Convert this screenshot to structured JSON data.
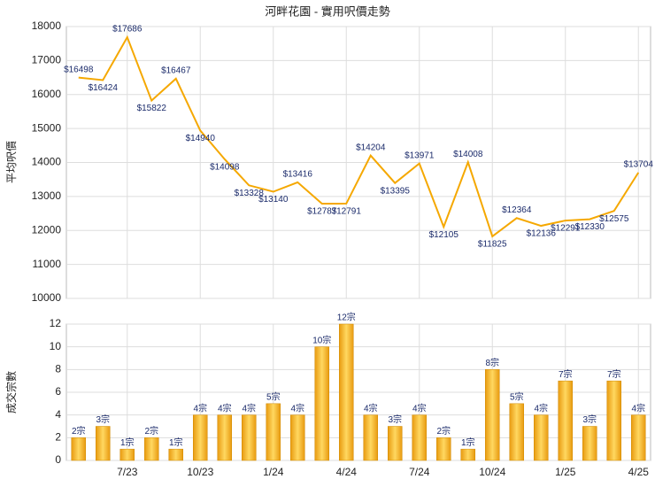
{
  "chart_data": [
    {
      "type": "line",
      "title": "河畔花園 - 實用呎價走勢",
      "y_label": "平均呎價",
      "categories": [
        null,
        null,
        "7/23",
        null,
        null,
        "10/23",
        null,
        null,
        "1/24",
        null,
        null,
        "4/24",
        null,
        null,
        "7/24",
        null,
        null,
        "10/24",
        null,
        null,
        "1/25",
        null,
        null,
        "4/25"
      ],
      "series": [
        {
          "name": "平均呎價",
          "color": "#f5a800",
          "values": [
            16498,
            16424,
            17686,
            15822,
            16467,
            14940,
            14098,
            13328,
            13140,
            13416,
            12787,
            12791,
            14204,
            13395,
            13971,
            12105,
            14008,
            11825,
            12364,
            12136,
            12291,
            12330,
            12575,
            13704
          ],
          "value_labels": [
            "$16498",
            "$16424",
            "$17686",
            "$15822",
            "$16467",
            "$14940",
            "$14098",
            "$13328",
            "$13140",
            "$13416",
            "$12787",
            "$12791",
            "$14204",
            "$13395",
            "$13971",
            "$12105",
            "$14008",
            "$11825",
            "$12364",
            "$12136",
            "$12291",
            "$12330",
            "$12575",
            "$13704"
          ]
        }
      ],
      "ylim": [
        10000,
        18000
      ],
      "yticks": [
        10000,
        11000,
        12000,
        13000,
        14000,
        15000,
        16000,
        17000,
        18000
      ],
      "grid": true
    },
    {
      "type": "bar",
      "y_label": "成交宗數",
      "categories": [
        null,
        null,
        "7/23",
        null,
        null,
        "10/23",
        null,
        null,
        "1/24",
        null,
        null,
        "4/24",
        null,
        null,
        "7/24",
        null,
        null,
        "10/24",
        null,
        null,
        "1/25",
        null,
        null,
        "4/25"
      ],
      "series": [
        {
          "name": "成交宗數",
          "color": "#f0b030",
          "values": [
            2,
            3,
            1,
            2,
            1,
            4,
            4,
            4,
            5,
            4,
            10,
            12,
            4,
            3,
            4,
            2,
            1,
            8,
            5,
            4,
            7,
            3,
            7,
            4
          ],
          "value_labels": [
            "2宗",
            "3宗",
            "1宗",
            "2宗",
            "1宗",
            "4宗",
            "4宗",
            "4宗",
            "5宗",
            "4宗",
            "10宗",
            "12宗",
            "4宗",
            "3宗",
            "4宗",
            "2宗",
            "1宗",
            "8宗",
            "5宗",
            "4宗",
            "7宗",
            "3宗",
            "7宗",
            "4宗"
          ]
        }
      ],
      "ylim": [
        0,
        12
      ],
      "yticks": [
        0,
        2,
        4,
        6,
        8,
        10,
        12
      ],
      "grid": true
    }
  ]
}
